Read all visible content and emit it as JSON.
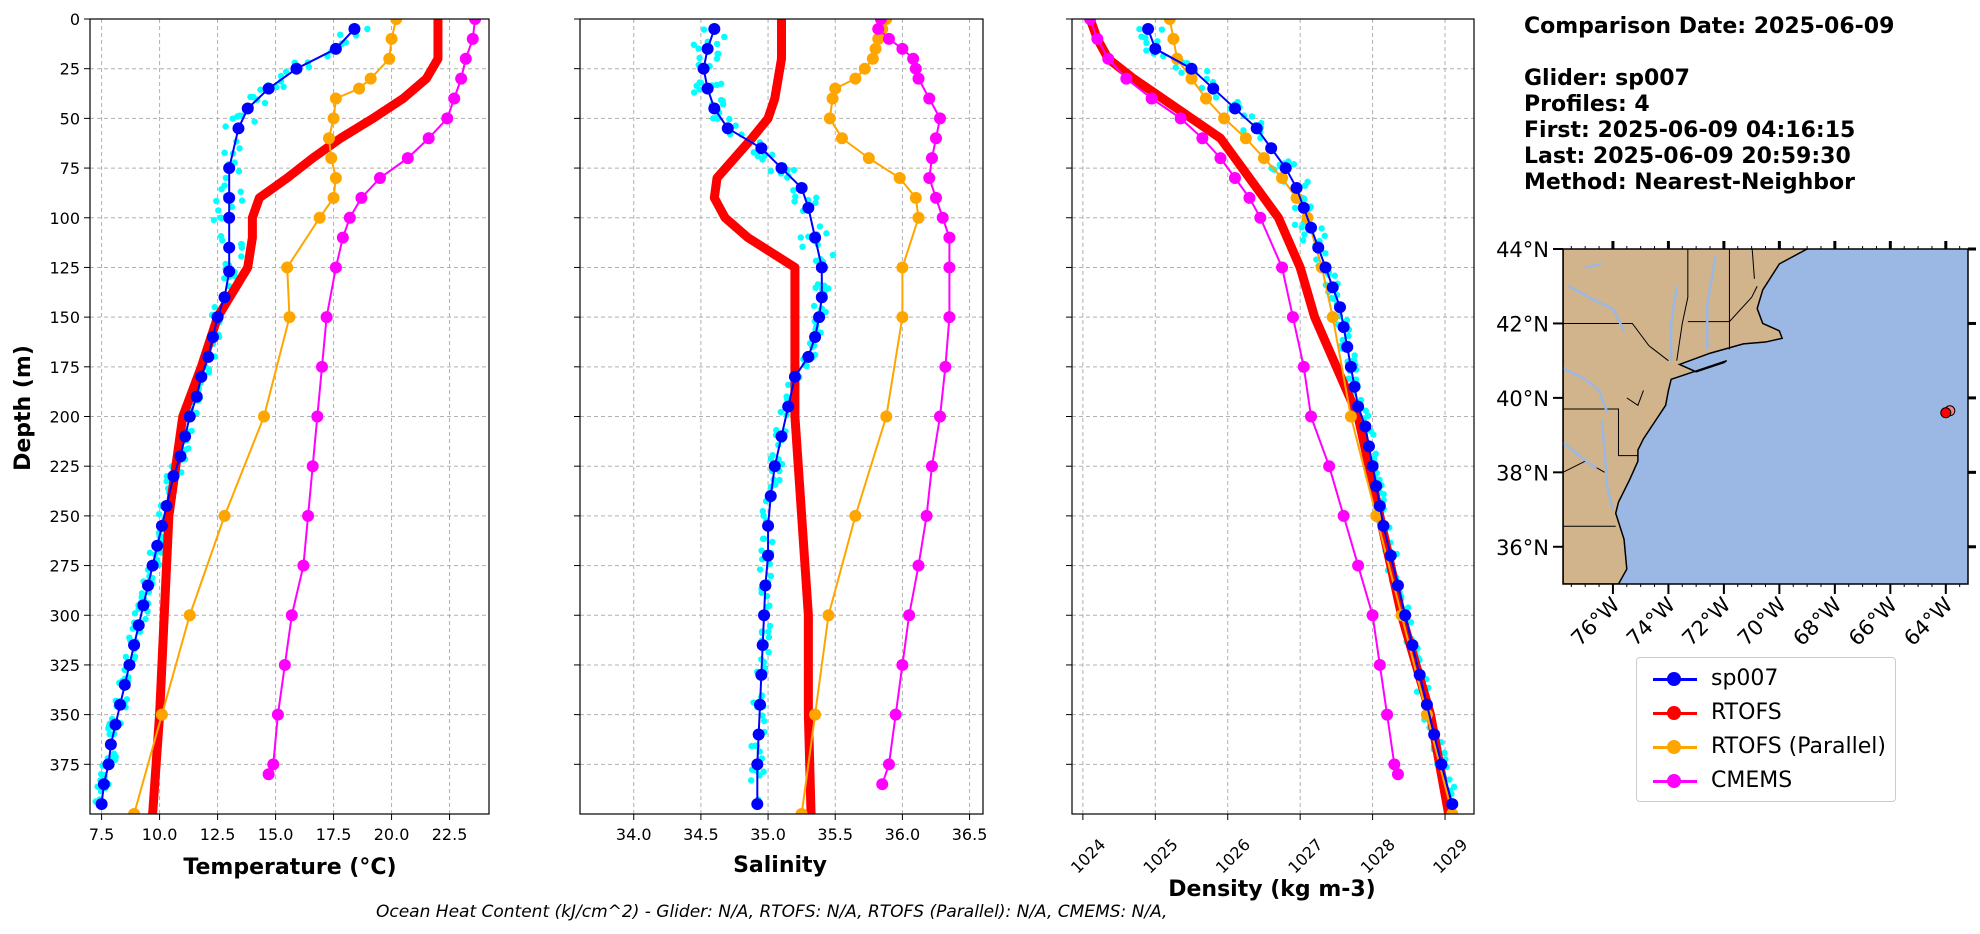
{
  "info": {
    "comparison_date": "Comparison Date: 2025-06-09",
    "glider": "Glider: sp007",
    "profiles": "Profiles: 4",
    "first": "First: 2025-06-09 04:16:15",
    "last": "Last: 2025-06-09 20:59:30",
    "method": "Method: Nearest-Neighbor"
  },
  "footer": "Ocean Heat Content (kJ/cm^2) - Glider: N/A,  RTOFS: N/A,  RTOFS (Parallel): N/A,  CMEMS: N/A,",
  "legend": [
    {
      "name": "sp007",
      "color": "#0000ff"
    },
    {
      "name": "RTOFS",
      "color": "#ff0000"
    },
    {
      "name": "RTOFS (Parallel)",
      "color": "#ffa500"
    },
    {
      "name": "CMEMS",
      "color": "#ff00ff"
    }
  ],
  "colors": {
    "glider_raw": "#00ffff",
    "land": "#d2b48c",
    "ocean": "#9ab8e3"
  },
  "chart_data": [
    {
      "type": "line",
      "xlabel": "Temperature (°C)",
      "ylabel": "Depth (m)",
      "xlim": [
        7,
        24.2
      ],
      "ylim": [
        400,
        0
      ],
      "xticks": [
        "7.5",
        "10.0",
        "12.5",
        "15.0",
        "17.5",
        "20.0",
        "22.5"
      ],
      "yticks": [
        "0",
        "25",
        "50",
        "75",
        "100",
        "125",
        "150",
        "175",
        "200",
        "225",
        "250",
        "275",
        "300",
        "325",
        "350",
        "375"
      ],
      "grid": true,
      "series": [
        {
          "name": "sp007",
          "depth": [
            5,
            15,
            25,
            35,
            45,
            55,
            75,
            90,
            100,
            115,
            127,
            140,
            150,
            160,
            170,
            180,
            190,
            200,
            210,
            220,
            230,
            245,
            255,
            265,
            275,
            285,
            295,
            305,
            315,
            325,
            335,
            345,
            355,
            365,
            375,
            385,
            395
          ],
          "values": [
            18.4,
            17.6,
            15.9,
            14.7,
            13.8,
            13.4,
            13.0,
            13.0,
            13.0,
            13.0,
            13.0,
            12.8,
            12.5,
            12.3,
            12.1,
            11.8,
            11.6,
            11.3,
            11.1,
            10.9,
            10.6,
            10.3,
            10.1,
            9.9,
            9.7,
            9.5,
            9.3,
            9.1,
            8.9,
            8.7,
            8.5,
            8.3,
            8.1,
            7.9,
            7.8,
            7.6,
            7.5
          ]
        },
        {
          "name": "RTOFS",
          "depth": [
            0,
            10,
            20,
            30,
            40,
            50,
            60,
            70,
            80,
            90,
            100,
            110,
            125,
            150,
            175,
            200,
            250,
            300,
            350,
            400
          ],
          "values": [
            22.0,
            22.0,
            22.0,
            21.5,
            20.5,
            19.2,
            17.8,
            16.6,
            15.5,
            14.3,
            14.0,
            14.0,
            13.8,
            12.5,
            11.8,
            11.0,
            10.4,
            10.2,
            10.0,
            9.7
          ]
        },
        {
          "name": "RTOFS (Parallel)",
          "depth": [
            0,
            10,
            20,
            30,
            35,
            40,
            50,
            60,
            70,
            80,
            90,
            100,
            125,
            150,
            200,
            250,
            300,
            350,
            400
          ],
          "values": [
            20.2,
            20.0,
            19.9,
            19.1,
            18.6,
            17.6,
            17.5,
            17.3,
            17.4,
            17.6,
            17.5,
            16.9,
            15.5,
            15.6,
            14.5,
            12.8,
            11.3,
            10.1,
            8.9
          ]
        },
        {
          "name": "CMEMS",
          "depth": [
            0,
            10,
            20,
            30,
            40,
            50,
            60,
            70,
            80,
            90,
            100,
            110,
            125,
            150,
            175,
            200,
            225,
            250,
            275,
            300,
            325,
            350,
            375,
            380
          ],
          "values": [
            23.6,
            23.5,
            23.2,
            23.0,
            22.7,
            22.4,
            21.6,
            20.7,
            19.5,
            18.7,
            18.2,
            17.9,
            17.6,
            17.2,
            17.0,
            16.8,
            16.6,
            16.4,
            16.2,
            15.7,
            15.4,
            15.1,
            14.9,
            14.7
          ]
        }
      ]
    },
    {
      "type": "line",
      "xlabel": "Salinity",
      "xlim": [
        33.6,
        36.6
      ],
      "ylim": [
        400,
        0
      ],
      "xticks": [
        "34.0",
        "34.5",
        "35.0",
        "35.5",
        "36.0",
        "36.5"
      ],
      "grid": true,
      "series": [
        {
          "name": "sp007",
          "depth": [
            5,
            15,
            25,
            35,
            45,
            55,
            65,
            75,
            85,
            95,
            110,
            125,
            140,
            150,
            160,
            170,
            180,
            195,
            210,
            225,
            240,
            255,
            270,
            285,
            300,
            315,
            330,
            345,
            360,
            375,
            395
          ],
          "values": [
            34.6,
            34.55,
            34.52,
            34.55,
            34.6,
            34.7,
            34.95,
            35.1,
            35.25,
            35.3,
            35.35,
            35.4,
            35.4,
            35.38,
            35.35,
            35.3,
            35.2,
            35.15,
            35.1,
            35.05,
            35.02,
            35.0,
            35.0,
            34.98,
            34.97,
            34.96,
            34.95,
            34.94,
            34.93,
            34.92,
            34.92
          ]
        },
        {
          "name": "RTOFS",
          "depth": [
            0,
            20,
            40,
            50,
            60,
            70,
            80,
            90,
            100,
            110,
            125,
            150,
            200,
            250,
            300,
            350,
            400
          ],
          "values": [
            35.1,
            35.1,
            35.05,
            35.0,
            34.88,
            34.75,
            34.62,
            34.6,
            34.68,
            34.85,
            35.2,
            35.2,
            35.2,
            35.25,
            35.3,
            35.3,
            35.32
          ]
        },
        {
          "name": "RTOFS (Parallel)",
          "depth": [
            0,
            5,
            10,
            15,
            20,
            25,
            30,
            35,
            40,
            50,
            60,
            70,
            80,
            90,
            100,
            125,
            150,
            200,
            250,
            300,
            350,
            400
          ],
          "values": [
            35.88,
            35.85,
            35.82,
            35.8,
            35.78,
            35.72,
            35.65,
            35.5,
            35.48,
            35.46,
            35.55,
            35.75,
            35.98,
            36.1,
            36.12,
            36.0,
            36.0,
            35.88,
            35.65,
            35.45,
            35.35,
            35.25
          ]
        },
        {
          "name": "CMEMS",
          "depth": [
            0,
            5,
            10,
            15,
            20,
            25,
            30,
            40,
            50,
            60,
            70,
            80,
            90,
            100,
            110,
            125,
            150,
            175,
            200,
            225,
            250,
            275,
            300,
            325,
            350,
            375,
            385
          ],
          "values": [
            35.84,
            35.82,
            35.9,
            36.0,
            36.08,
            36.1,
            36.12,
            36.2,
            36.28,
            36.25,
            36.22,
            36.2,
            36.25,
            36.3,
            36.35,
            36.35,
            36.35,
            36.32,
            36.28,
            36.22,
            36.18,
            36.12,
            36.05,
            36.0,
            35.95,
            35.9,
            35.85
          ]
        }
      ]
    },
    {
      "type": "line",
      "xlabel": "Density (kg m-3)",
      "xlim": [
        1023.85,
        1029.4
      ],
      "ylim": [
        400,
        0
      ],
      "xticks": [
        "1024",
        "1025",
        "1026",
        "1027",
        "1028",
        "1029"
      ],
      "grid": true,
      "series": [
        {
          "name": "sp007",
          "depth": [
            5,
            15,
            25,
            35,
            45,
            55,
            65,
            75,
            85,
            95,
            105,
            115,
            125,
            135,
            145,
            155,
            165,
            175,
            185,
            195,
            205,
            215,
            225,
            235,
            245,
            255,
            270,
            285,
            300,
            315,
            330,
            345,
            360,
            375,
            395
          ],
          "values": [
            1024.9,
            1025.0,
            1025.5,
            1025.8,
            1026.1,
            1026.4,
            1026.6,
            1026.8,
            1026.95,
            1027.05,
            1027.15,
            1027.25,
            1027.35,
            1027.45,
            1027.55,
            1027.6,
            1027.65,
            1027.7,
            1027.75,
            1027.8,
            1027.9,
            1027.95,
            1028.0,
            1028.05,
            1028.1,
            1028.15,
            1028.25,
            1028.35,
            1028.45,
            1028.55,
            1028.65,
            1028.75,
            1028.85,
            1028.95,
            1029.1
          ]
        },
        {
          "name": "RTOFS",
          "depth": [
            0,
            10,
            20,
            30,
            40,
            50,
            60,
            70,
            80,
            90,
            100,
            125,
            150,
            175,
            200,
            250,
            300,
            350,
            400
          ],
          "values": [
            1024.1,
            1024.2,
            1024.35,
            1024.7,
            1025.1,
            1025.5,
            1025.9,
            1026.1,
            1026.3,
            1026.5,
            1026.7,
            1027.0,
            1027.2,
            1027.5,
            1027.8,
            1028.1,
            1028.4,
            1028.8,
            1029.05
          ]
        },
        {
          "name": "RTOFS (Parallel)",
          "depth": [
            0,
            10,
            20,
            30,
            40,
            50,
            60,
            70,
            80,
            90,
            100,
            125,
            150,
            200,
            250,
            300,
            350,
            400
          ],
          "values": [
            1025.2,
            1025.25,
            1025.3,
            1025.5,
            1025.7,
            1025.95,
            1026.25,
            1026.5,
            1026.75,
            1026.95,
            1027.1,
            1027.3,
            1027.45,
            1027.7,
            1028.05,
            1028.4,
            1028.75,
            1029.1
          ]
        },
        {
          "name": "CMEMS",
          "depth": [
            0,
            10,
            20,
            30,
            40,
            50,
            60,
            70,
            80,
            90,
            100,
            125,
            150,
            175,
            200,
            225,
            250,
            275,
            300,
            325,
            350,
            375,
            380
          ],
          "values": [
            1024.1,
            1024.2,
            1024.35,
            1024.6,
            1024.95,
            1025.35,
            1025.65,
            1025.9,
            1026.1,
            1026.3,
            1026.45,
            1026.75,
            1026.9,
            1027.05,
            1027.15,
            1027.4,
            1027.6,
            1027.8,
            1028.0,
            1028.1,
            1028.2,
            1028.3,
            1028.35
          ]
        }
      ]
    }
  ],
  "map": {
    "lat_ticks": [
      "44°N",
      "42°N",
      "40°N",
      "38°N",
      "36°N"
    ],
    "lon_ticks": [
      "76°W",
      "74°W",
      "72°W",
      "70°W",
      "68°W",
      "66°W",
      "64°W"
    ],
    "extent": {
      "lon": [
        -77.8,
        -63.2
      ],
      "lat": [
        35,
        44
      ]
    },
    "glider_position": {
      "lon": -64.0,
      "lat": 39.6
    }
  }
}
